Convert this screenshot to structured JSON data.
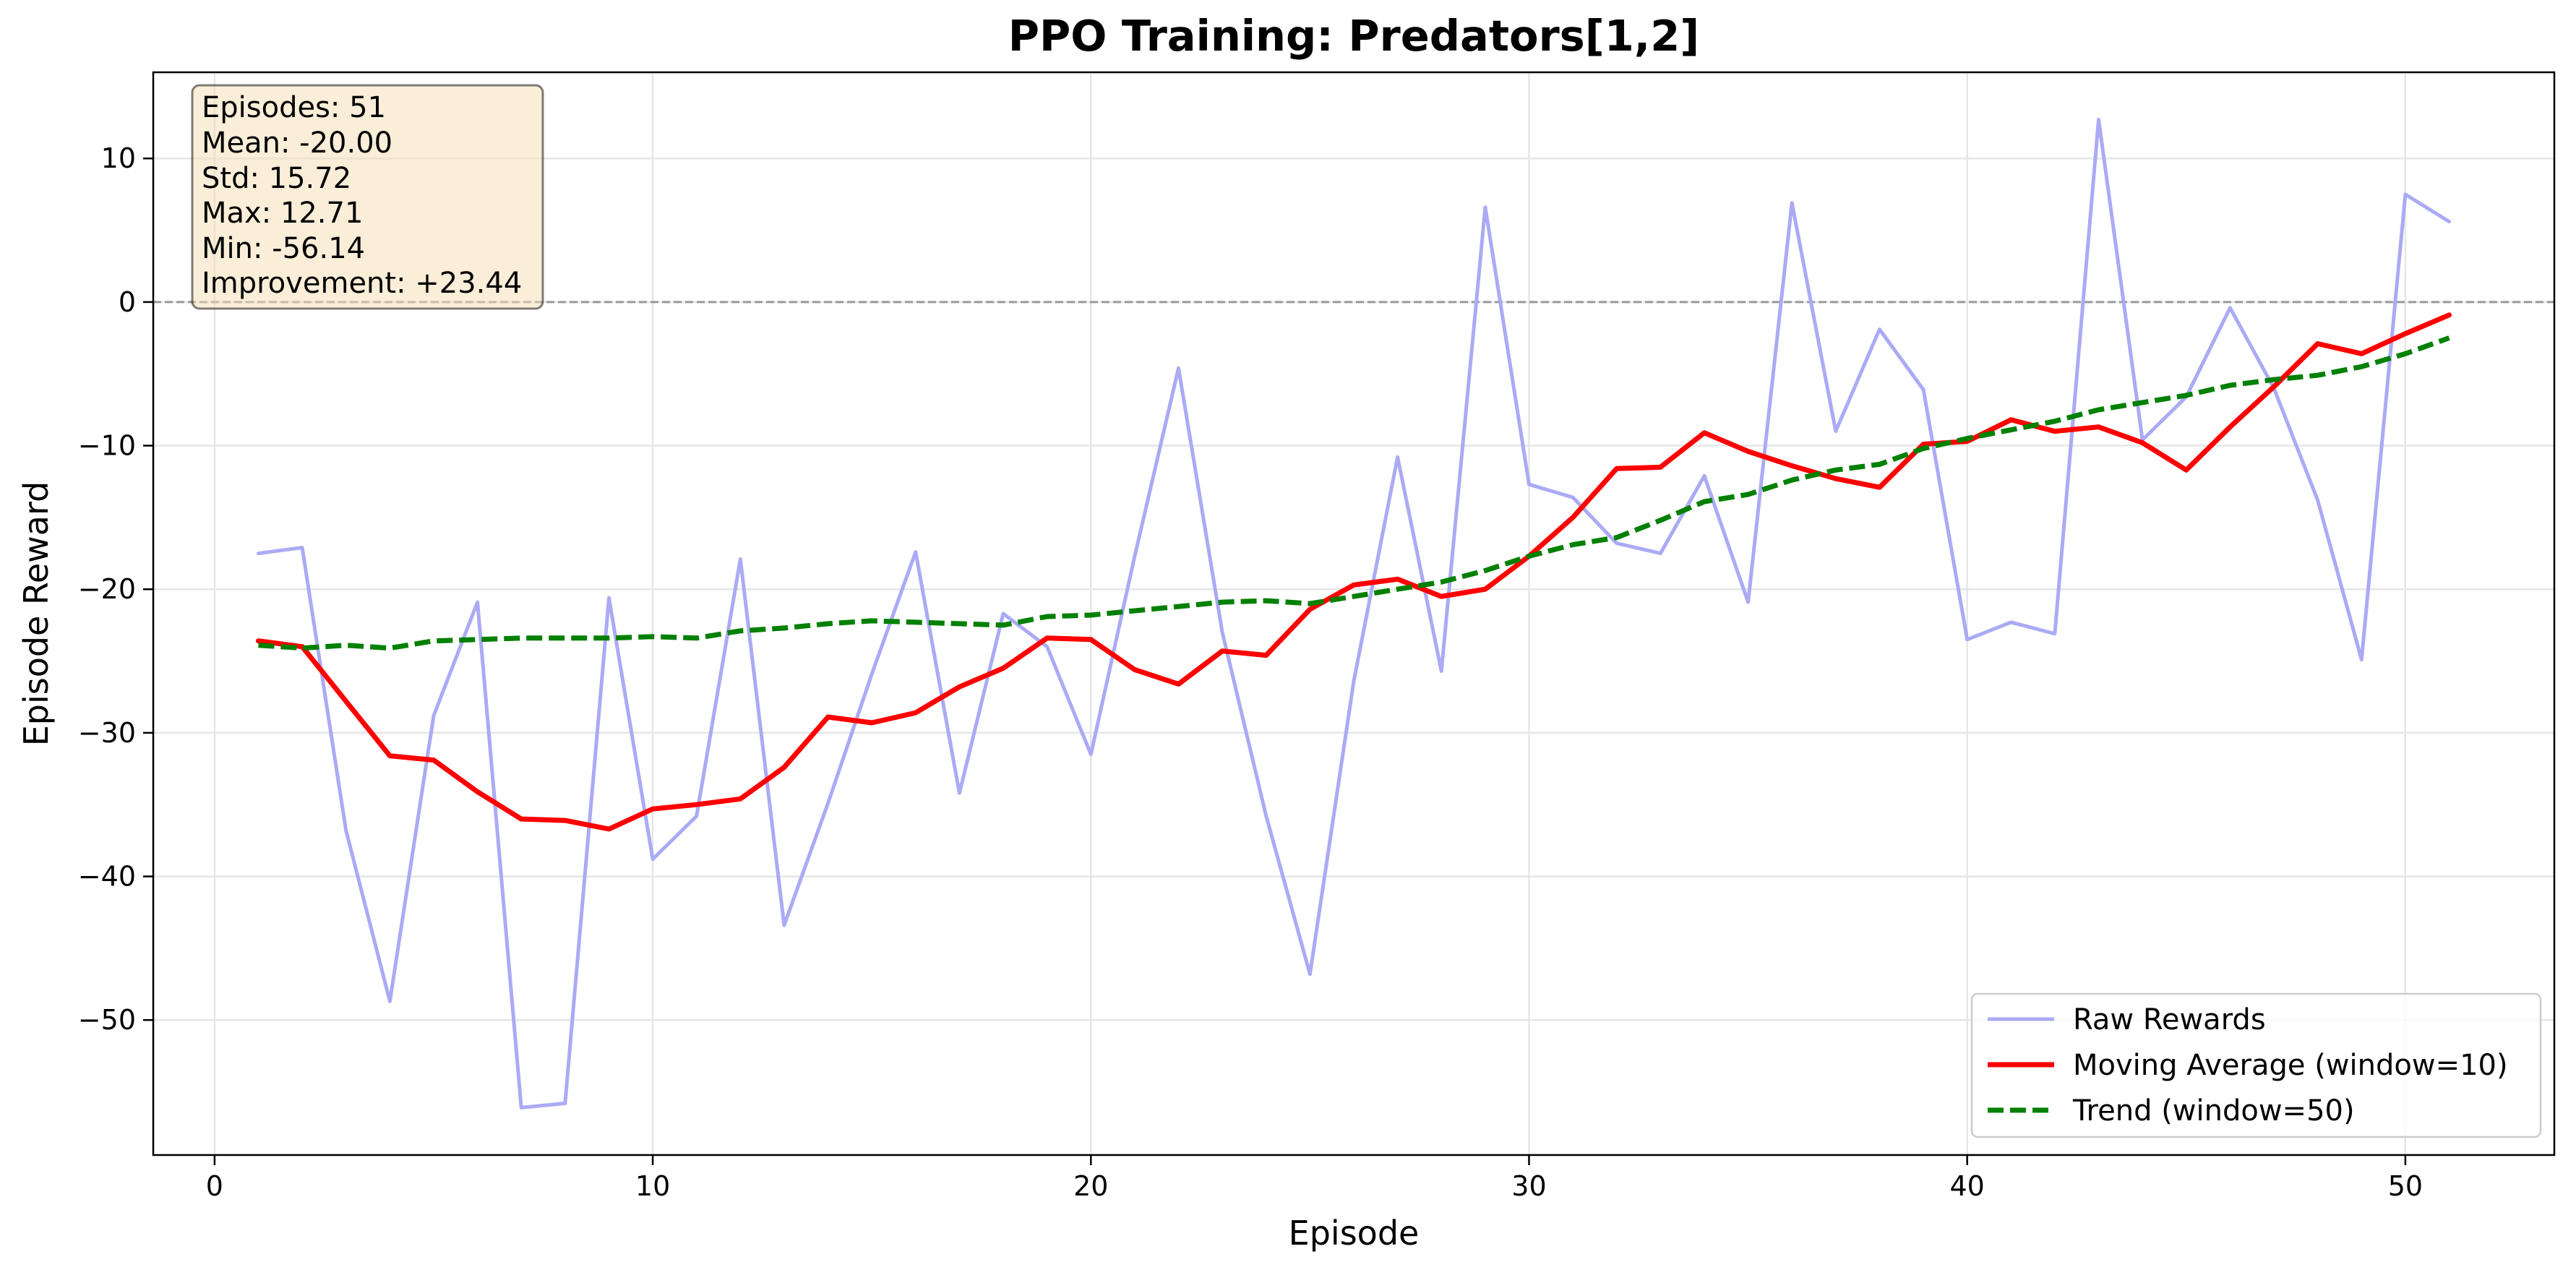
{
  "chart_data": {
    "type": "line",
    "title": "PPO Training: Predators[1,2]",
    "xlabel": "Episode",
    "ylabel": "Episode Reward",
    "xlim": [
      -1.4,
      53.4
    ],
    "ylim": [
      -59.4,
      16.0
    ],
    "xticks": [
      0,
      10,
      20,
      30,
      40,
      50
    ],
    "yticks": [
      10,
      0,
      -10,
      -20,
      -30,
      -40,
      -50
    ],
    "grid": true,
    "reference_line_y": 0,
    "legend_position": "lower right",
    "x": [
      1,
      2,
      3,
      4,
      5,
      6,
      7,
      8,
      9,
      10,
      11,
      12,
      13,
      14,
      15,
      16,
      17,
      18,
      19,
      20,
      21,
      22,
      23,
      24,
      25,
      26,
      27,
      28,
      29,
      30,
      31,
      32,
      33,
      34,
      35,
      36,
      37,
      38,
      39,
      40,
      41,
      42,
      43,
      44,
      45,
      46,
      47,
      48,
      49,
      50,
      51
    ],
    "series": [
      {
        "name": "Raw Rewards",
        "color": "#aaaaf5",
        "style": "solid",
        "values": [
          -17.5,
          -17.1,
          -36.8,
          -48.7,
          -28.8,
          -20.9,
          -56.1,
          -55.8,
          -20.6,
          -38.8,
          -35.8,
          -17.9,
          -43.4,
          -34.9,
          -25.9,
          -17.4,
          -34.2,
          -21.7,
          -24.0,
          -31.5,
          -17.7,
          -4.6,
          -23.0,
          -35.8,
          -46.8,
          -26.4,
          -10.8,
          -25.7,
          6.6,
          -12.7,
          -13.6,
          -16.8,
          -17.5,
          -12.1,
          -20.9,
          6.9,
          -9.0,
          -1.9,
          -6.1,
          -23.5,
          -22.3,
          -23.1,
          12.71,
          -9.6,
          -6.6,
          -0.4,
          -6.0,
          -13.8,
          -24.9,
          7.5,
          5.6
        ]
      },
      {
        "name": "Moving Average (window=10)",
        "color": "#ff0000",
        "style": "solid",
        "values": [
          -23.6,
          -24.0,
          -27.8,
          -31.6,
          -31.9,
          -34.1,
          -36.0,
          -36.1,
          -36.7,
          -35.3,
          -35.0,
          -34.6,
          -32.4,
          -28.9,
          -29.3,
          -28.6,
          -26.8,
          -25.5,
          -23.4,
          -23.5,
          -25.6,
          -26.6,
          -24.3,
          -24.6,
          -21.4,
          -19.7,
          -19.3,
          -20.5,
          -20.0,
          -17.7,
          -15.0,
          -11.6,
          -11.5,
          -9.1,
          -10.4,
          -11.4,
          -12.3,
          -12.9,
          -9.9,
          -9.7,
          -8.2,
          -9.0,
          -8.7,
          -9.8,
          -11.7,
          -8.7,
          -5.9,
          -2.9,
          -3.6,
          -2.2,
          -0.9
        ]
      },
      {
        "name": "Trend (window=50)",
        "color": "#008000",
        "style": "dashed",
        "values": [
          -23.9,
          -24.1,
          -23.9,
          -24.1,
          -23.6,
          -23.5,
          -23.4,
          -23.4,
          -23.4,
          -23.3,
          -23.4,
          -22.9,
          -22.7,
          -22.4,
          -22.2,
          -22.3,
          -22.4,
          -22.5,
          -21.9,
          -21.8,
          -21.5,
          -21.2,
          -20.9,
          -20.8,
          -21.0,
          -20.5,
          -20.0,
          -19.5,
          -18.7,
          -17.7,
          -16.9,
          -16.4,
          -15.2,
          -13.9,
          -13.4,
          -12.4,
          -11.7,
          -11.3,
          -10.2,
          -9.5,
          -8.9,
          -8.3,
          -7.5,
          -7.0,
          -6.5,
          -5.8,
          -5.4,
          -5.1,
          -4.5,
          -3.6,
          -2.5
        ]
      }
    ],
    "stats_box": {
      "lines": [
        "Episodes: 51",
        "Mean: -20.00",
        "Std: 15.72",
        "Max: 12.71",
        "Min: -56.14",
        "Improvement: +23.44"
      ]
    }
  }
}
